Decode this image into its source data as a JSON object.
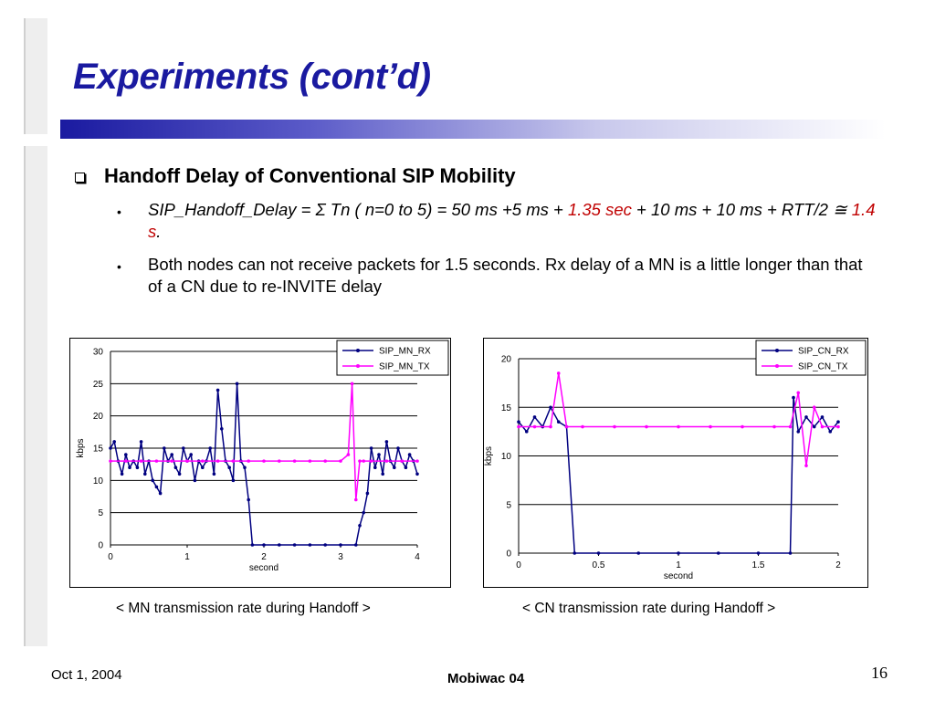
{
  "slide": {
    "title": "Experiments (cont’d)",
    "heading": "Handoff Delay of Conventional SIP Mobility",
    "bullet1": {
      "part1": "SIP_Handoff_Delay = ",
      "sigma": "Σ",
      "part2": " Tn ( n=0 to 5)  = 50 ms +5 ms + ",
      "red1": "1.35 sec",
      "part3": " + 10 ms + 10 ms + RTT/2 ",
      "approx": "≅",
      "space": " ",
      "red2": "1.4 s",
      "end": "."
    },
    "bullet2": "Both nodes can not receive packets for 1.5 seconds. Rx delay of a MN is a little longer than that of a CN due to re-INVITE delay",
    "caption_left": "< MN transmission rate during Handoff >",
    "caption_right": "< CN transmission rate during Handoff >",
    "footer_date": "Oct 1, 2004",
    "footer_center": "Mobiwac 04",
    "page_number": "16"
  },
  "colors": {
    "title": "#1a1aa0",
    "rx": "#000080",
    "tx": "#ff00ff",
    "emphasis": "#c00000"
  },
  "chart_data": [
    {
      "type": "line",
      "xlabel": "second",
      "ylabel": "kbps",
      "xlim": [
        0,
        4
      ],
      "ylim": [
        0,
        30
      ],
      "xticks": [
        "0",
        "1",
        "2",
        "3",
        "4"
      ],
      "yticks": [
        "0",
        "5",
        "10",
        "15",
        "20",
        "25",
        "30"
      ],
      "legend": "top-right",
      "series": [
        {
          "name": "SIP_MN_RX",
          "color": "#000080",
          "x": [
            0.0,
            0.05,
            0.1,
            0.15,
            0.2,
            0.25,
            0.3,
            0.35,
            0.4,
            0.45,
            0.5,
            0.55,
            0.6,
            0.65,
            0.7,
            0.75,
            0.8,
            0.85,
            0.9,
            0.95,
            1.0,
            1.05,
            1.1,
            1.15,
            1.2,
            1.25,
            1.3,
            1.35,
            1.4,
            1.45,
            1.5,
            1.55,
            1.6,
            1.65,
            1.7,
            1.75,
            1.8,
            1.85,
            2.0,
            2.2,
            2.4,
            2.6,
            2.8,
            3.0,
            3.2,
            3.25,
            3.3,
            3.35,
            3.4,
            3.45,
            3.5,
            3.55,
            3.6,
            3.65,
            3.7,
            3.75,
            3.8,
            3.85,
            3.9,
            3.95,
            4.0
          ],
          "y": [
            15,
            16,
            13,
            11,
            14,
            12,
            13,
            12,
            16,
            11,
            13,
            10,
            9,
            8,
            15,
            13,
            14,
            12,
            11,
            15,
            13,
            14,
            10,
            13,
            12,
            13,
            15,
            11,
            24,
            18,
            13,
            12,
            10,
            25,
            13,
            12,
            7,
            0,
            0,
            0,
            0,
            0,
            0,
            0,
            0,
            3,
            5,
            8,
            15,
            12,
            14,
            11,
            16,
            13,
            12,
            15,
            13,
            12,
            14,
            13,
            11
          ]
        },
        {
          "name": "SIP_MN_TX",
          "color": "#ff00ff",
          "x": [
            0.0,
            0.2,
            0.4,
            0.6,
            0.8,
            1.0,
            1.2,
            1.4,
            1.6,
            1.8,
            2.0,
            2.2,
            2.4,
            2.6,
            2.8,
            3.0,
            3.1,
            3.15,
            3.2,
            3.25,
            3.3,
            3.4,
            3.6,
            3.8,
            4.0
          ],
          "y": [
            13,
            13,
            13,
            13,
            13,
            13,
            13,
            13,
            13,
            13,
            13,
            13,
            13,
            13,
            13,
            13,
            14,
            25,
            7,
            13,
            13,
            13,
            13,
            13,
            13
          ]
        }
      ]
    },
    {
      "type": "line",
      "xlabel": "second",
      "ylabel": "kbps",
      "xlim": [
        0,
        2
      ],
      "ylim": [
        0,
        20
      ],
      "xticks": [
        "0",
        "0.5",
        "1",
        "1.5",
        "2"
      ],
      "yticks": [
        "0",
        "5",
        "10",
        "15",
        "20"
      ],
      "legend": "top-right",
      "series": [
        {
          "name": "SIP_CN_RX",
          "color": "#000080",
          "x": [
            0.0,
            0.05,
            0.1,
            0.15,
            0.2,
            0.25,
            0.3,
            0.35,
            0.5,
            0.75,
            1.0,
            1.25,
            1.5,
            1.7,
            1.72,
            1.75,
            1.8,
            1.85,
            1.9,
            1.95,
            2.0
          ],
          "y": [
            13.5,
            12.5,
            14,
            13,
            15,
            13.5,
            13,
            0,
            0,
            0,
            0,
            0,
            0,
            0,
            16,
            12.5,
            14,
            13,
            14,
            12.5,
            13.5
          ]
        },
        {
          "name": "SIP_CN_TX",
          "color": "#ff00ff",
          "x": [
            0.0,
            0.1,
            0.2,
            0.25,
            0.3,
            0.4,
            0.6,
            0.8,
            1.0,
            1.2,
            1.4,
            1.6,
            1.7,
            1.75,
            1.8,
            1.85,
            1.9,
            2.0
          ],
          "y": [
            13,
            13,
            13,
            18.5,
            13,
            13,
            13,
            13,
            13,
            13,
            13,
            13,
            13,
            16.5,
            9,
            15,
            13,
            13
          ]
        }
      ]
    }
  ]
}
